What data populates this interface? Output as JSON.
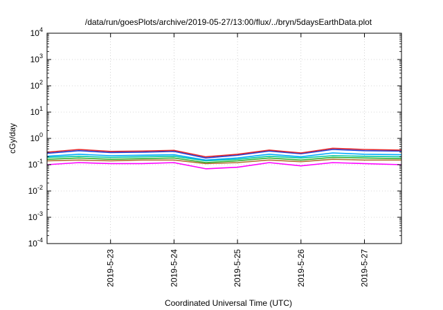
{
  "chart_data": {
    "type": "line",
    "title": "/data/run/goesPlots/archive/2019-05-27/13:00/flux/../bryn/5daysEarthData.plot",
    "xlabel": "Coordinated Universal Time (UTC)",
    "ylabel": "cGy/day",
    "x_scale": "time",
    "y_scale": "log",
    "xlim": [
      "2019-05-22T00:00",
      "2019-05-27T14:00"
    ],
    "ylim": [
      0.0001,
      10000
    ],
    "grid": true,
    "legend": "none",
    "x_ticks": [
      {
        "x": "2019-05-23T00:00",
        "label": "2019-5-23"
      },
      {
        "x": "2019-05-24T00:00",
        "label": "2019-5-24"
      },
      {
        "x": "2019-05-25T00:00",
        "label": "2019-5-25"
      },
      {
        "x": "2019-05-26T00:00",
        "label": "2019-5-26"
      },
      {
        "x": "2019-05-27T00:00",
        "label": "2019-5-27"
      }
    ],
    "y_ticks": [
      {
        "y": 0.0001,
        "base": "10",
        "exp": "-4"
      },
      {
        "y": 0.001,
        "base": "10",
        "exp": "-3"
      },
      {
        "y": 0.01,
        "base": "10",
        "exp": "-2"
      },
      {
        "y": 0.1,
        "base": "10",
        "exp": "-1"
      },
      {
        "y": 1,
        "base": "10",
        "exp": "0"
      },
      {
        "y": 10,
        "base": "10",
        "exp": "1"
      },
      {
        "y": 100,
        "base": "10",
        "exp": "2"
      },
      {
        "y": 1000,
        "base": "10",
        "exp": "3"
      },
      {
        "y": 10000,
        "base": "10",
        "exp": "4"
      }
    ],
    "series": [
      {
        "color": "#e5262a",
        "x": [
          "2019-05-22T00:00",
          "2019-05-22T12:00",
          "2019-05-23T00:00",
          "2019-05-23T12:00",
          "2019-05-24T00:00",
          "2019-05-24T12:00",
          "2019-05-25T00:00",
          "2019-05-25T12:00",
          "2019-05-26T00:00",
          "2019-05-26T12:00",
          "2019-05-27T00:00",
          "2019-05-27T14:00"
        ],
        "y": [
          0.3,
          0.38,
          0.32,
          0.33,
          0.35,
          0.2,
          0.25,
          0.36,
          0.28,
          0.42,
          0.38,
          0.36
        ]
      },
      {
        "color": "#1f3fd8",
        "x": [
          "2019-05-22T00:00",
          "2019-05-22T12:00",
          "2019-05-23T00:00",
          "2019-05-23T12:00",
          "2019-05-24T00:00",
          "2019-05-24T12:00",
          "2019-05-25T00:00",
          "2019-05-25T12:00",
          "2019-05-26T00:00",
          "2019-05-26T12:00",
          "2019-05-27T00:00",
          "2019-05-27T14:00"
        ],
        "y": [
          0.27,
          0.34,
          0.29,
          0.3,
          0.32,
          0.18,
          0.23,
          0.33,
          0.26,
          0.38,
          0.34,
          0.33
        ]
      },
      {
        "color": "#00a8ff",
        "x": [
          "2019-05-22T00:00",
          "2019-05-22T12:00",
          "2019-05-23T00:00",
          "2019-05-23T12:00",
          "2019-05-24T00:00",
          "2019-05-24T12:00",
          "2019-05-25T00:00",
          "2019-05-25T12:00",
          "2019-05-26T00:00",
          "2019-05-26T12:00",
          "2019-05-27T00:00",
          "2019-05-27T14:00"
        ],
        "y": [
          0.21,
          0.25,
          0.22,
          0.23,
          0.24,
          0.15,
          0.18,
          0.25,
          0.2,
          0.28,
          0.25,
          0.24
        ]
      },
      {
        "color": "#00c8a0",
        "x": [
          "2019-05-22T00:00",
          "2019-05-22T12:00",
          "2019-05-23T00:00",
          "2019-05-23T12:00",
          "2019-05-24T00:00",
          "2019-05-24T12:00",
          "2019-05-25T00:00",
          "2019-05-25T12:00",
          "2019-05-26T00:00",
          "2019-05-26T12:00",
          "2019-05-27T00:00",
          "2019-05-27T14:00"
        ],
        "y": [
          0.19,
          0.21,
          0.19,
          0.2,
          0.21,
          0.14,
          0.16,
          0.21,
          0.18,
          0.22,
          0.21,
          0.2
        ]
      },
      {
        "color": "#30b030",
        "x": [
          "2019-05-22T00:00",
          "2019-05-22T12:00",
          "2019-05-23T00:00",
          "2019-05-23T12:00",
          "2019-05-24T00:00",
          "2019-05-24T12:00",
          "2019-05-25T00:00",
          "2019-05-25T12:00",
          "2019-05-26T00:00",
          "2019-05-26T12:00",
          "2019-05-27T00:00",
          "2019-05-27T14:00"
        ],
        "y": [
          0.16,
          0.18,
          0.16,
          0.17,
          0.18,
          0.12,
          0.14,
          0.18,
          0.15,
          0.19,
          0.18,
          0.17
        ]
      },
      {
        "color": "#b07030",
        "x": [
          "2019-05-22T00:00",
          "2019-05-22T12:00",
          "2019-05-23T00:00",
          "2019-05-23T12:00",
          "2019-05-24T00:00",
          "2019-05-24T12:00",
          "2019-05-25T00:00",
          "2019-05-25T12:00",
          "2019-05-26T00:00",
          "2019-05-26T12:00",
          "2019-05-27T00:00",
          "2019-05-27T14:00"
        ],
        "y": [
          0.14,
          0.15,
          0.14,
          0.15,
          0.15,
          0.11,
          0.12,
          0.15,
          0.13,
          0.16,
          0.15,
          0.15
        ]
      },
      {
        "color": "#ff00ff",
        "x": [
          "2019-05-22T00:00",
          "2019-05-22T12:00",
          "2019-05-23T00:00",
          "2019-05-23T12:00",
          "2019-05-24T00:00",
          "2019-05-24T12:00",
          "2019-05-25T00:00",
          "2019-05-25T12:00",
          "2019-05-26T00:00",
          "2019-05-26T12:00",
          "2019-05-27T00:00",
          "2019-05-27T14:00"
        ],
        "y": [
          0.1,
          0.12,
          0.11,
          0.11,
          0.12,
          0.07,
          0.08,
          0.12,
          0.09,
          0.12,
          0.11,
          0.1
        ]
      }
    ]
  }
}
